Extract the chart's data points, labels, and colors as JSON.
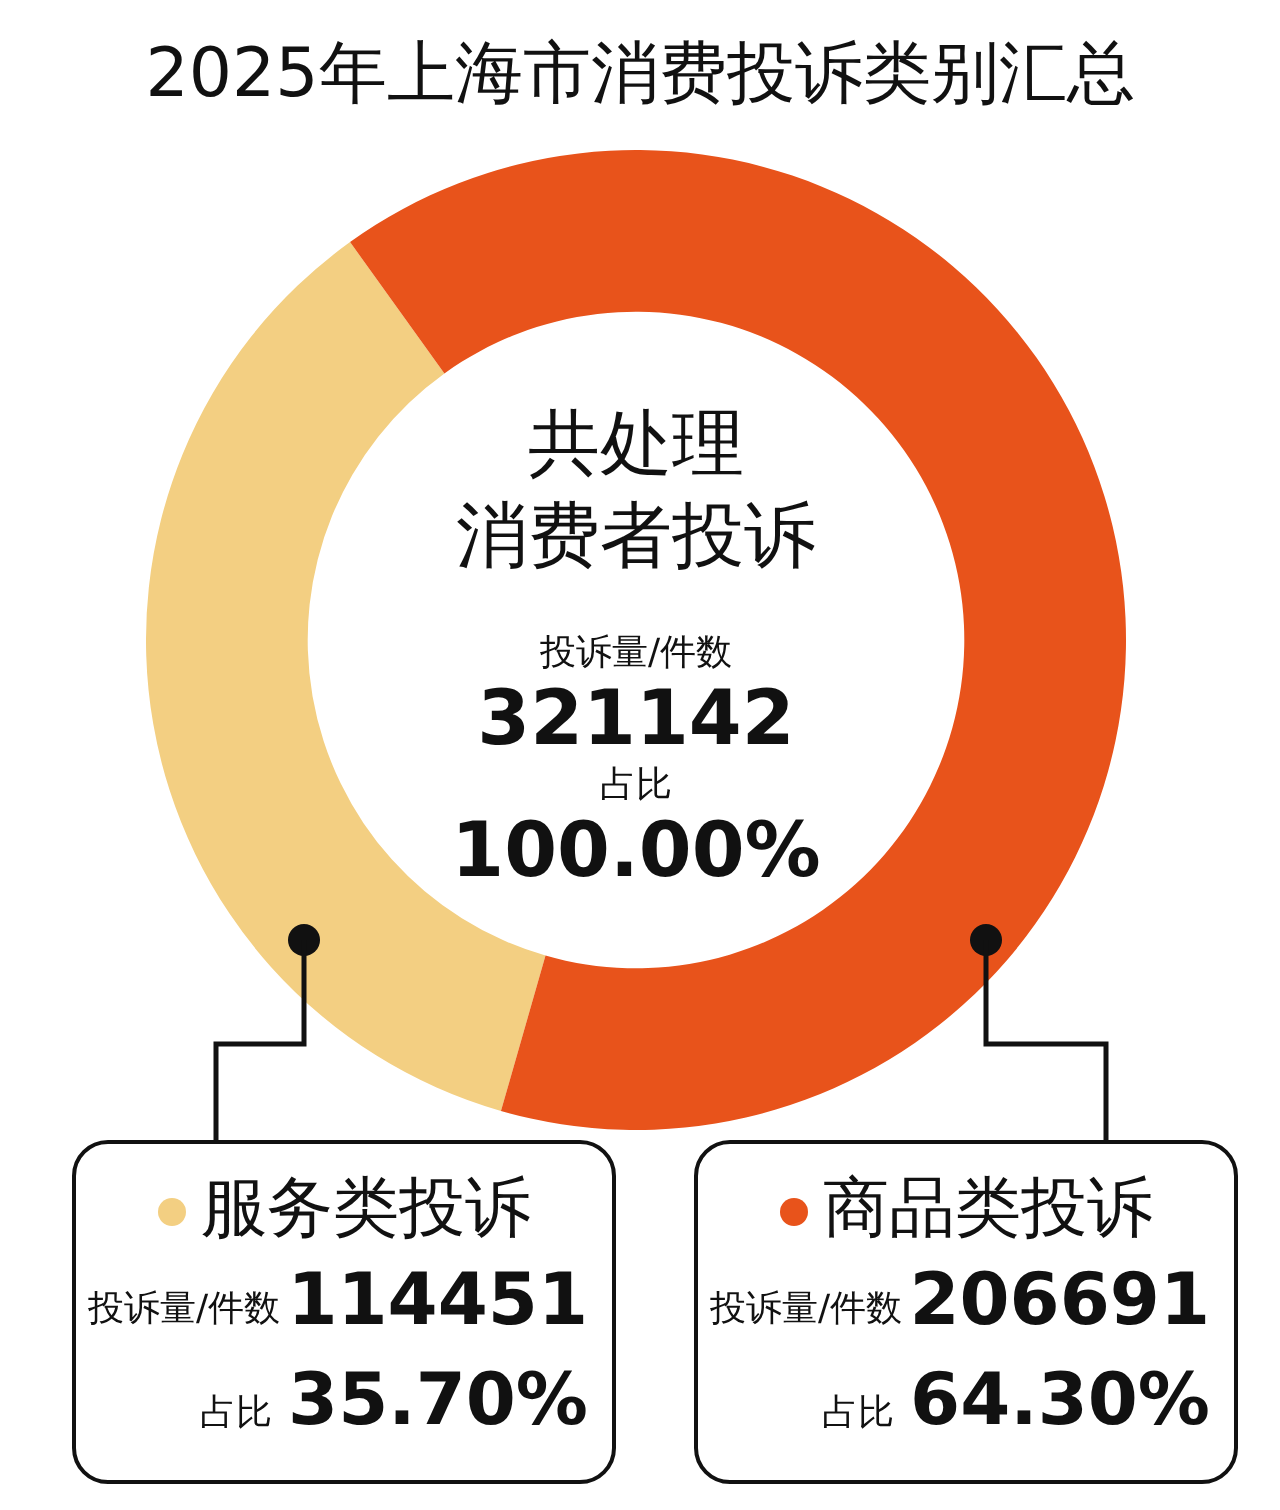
{
  "chart_data": {
    "type": "donut",
    "title": "2025年上海市消费投诉类别汇总",
    "categories": [
      "服务类投诉",
      "商品类投诉"
    ],
    "values": [
      114451,
      206691
    ],
    "colors": [
      "#f3cf82",
      "#e8531b"
    ],
    "data_labels": true,
    "legend": "bottom",
    "annotations": [
      "共处理",
      "消费者投诉",
      "投诉量/件数",
      "321142",
      "占比",
      "100.00%",
      "投诉量/件数",
      "占比",
      "35.70%",
      "投诉量/件数",
      "占比",
      "64.30%"
    ]
  }
}
